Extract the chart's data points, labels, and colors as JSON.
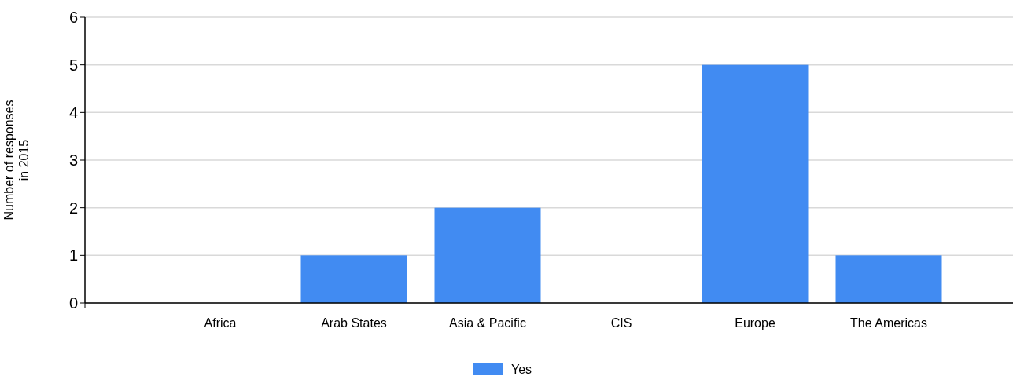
{
  "chart_data": {
    "type": "bar",
    "ylabel": "Number of responses\nin 2015",
    "categories": [
      "Africa",
      "Arab States",
      "Asia & Pacific",
      "CIS",
      "Europe",
      "The Americas"
    ],
    "series": [
      {
        "name": "Yes",
        "color": "#418bf2",
        "values": [
          0,
          1,
          2,
          0,
          5,
          1
        ]
      }
    ],
    "ylim": [
      0,
      6
    ],
    "yticks": [
      0,
      1,
      2,
      3,
      4,
      5,
      6
    ],
    "grid": "y",
    "legend": "bottom"
  }
}
